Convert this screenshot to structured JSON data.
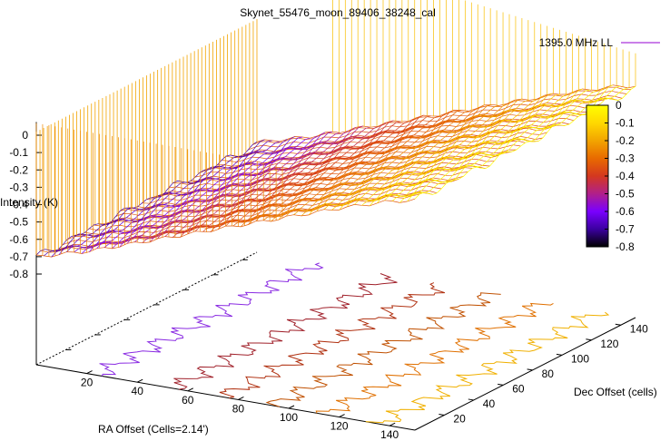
{
  "chart_data": {
    "type": "surface3d",
    "title": "Skynet_55476_moon_89406_38248_cal",
    "legend": {
      "entries": [
        "1395.0 MHz LL"
      ],
      "placement": "top-right"
    },
    "xlabel": "RA Offset (Cells=2.14')",
    "ylabel": "Dec Offset (cells)",
    "zlabel": "Intensity (K)",
    "xlim": [
      0,
      150
    ],
    "ylim": [
      0,
      150
    ],
    "zlim": [
      -0.8,
      0.05
    ],
    "x_ticks": [
      "20",
      "40",
      "60",
      "80",
      "100",
      "120",
      "140"
    ],
    "y_ticks": [
      "20",
      "40",
      "60",
      "80",
      "100",
      "120",
      "140"
    ],
    "z_ticks": [
      "0",
      "-0.1",
      "-0.2",
      "-0.3",
      "-0.4",
      "-0.5",
      "-0.6",
      "-0.7",
      "-0.8"
    ],
    "colorbar": {
      "range": [
        -0.8,
        0
      ],
      "ticks": [
        "0",
        "-0.1",
        "-0.2",
        "-0.3",
        "-0.4",
        "-0.5",
        "-0.6",
        "-0.7",
        "-0.8"
      ],
      "palette": [
        "#000000",
        "#3b00a0",
        "#7a00ff",
        "#b0208a",
        "#d4381f",
        "#e86a00",
        "#f2a400",
        "#ffd800",
        "#ffff00"
      ]
    },
    "surface": {
      "description_values": "Intensity rises from about -0.7 K at low RA offset to about 0 K at high RA offset, roughly constant along Dec offset",
      "profile_x": [
        0,
        20,
        40,
        60,
        80,
        100,
        120,
        140,
        150
      ],
      "profile_z": [
        -0.7,
        -0.62,
        -0.52,
        -0.42,
        -0.32,
        -0.22,
        -0.12,
        -0.03,
        0.0
      ]
    },
    "contours": [
      {
        "level": -0.6,
        "color": "#8a2be2"
      },
      {
        "level": -0.45,
        "color": "#a0202a"
      },
      {
        "level": -0.35,
        "color": "#b03010"
      },
      {
        "level": -0.25,
        "color": "#c05000"
      },
      {
        "level": -0.15,
        "color": "#e07000"
      },
      {
        "level": -0.05,
        "color": "#f0b000"
      }
    ]
  }
}
